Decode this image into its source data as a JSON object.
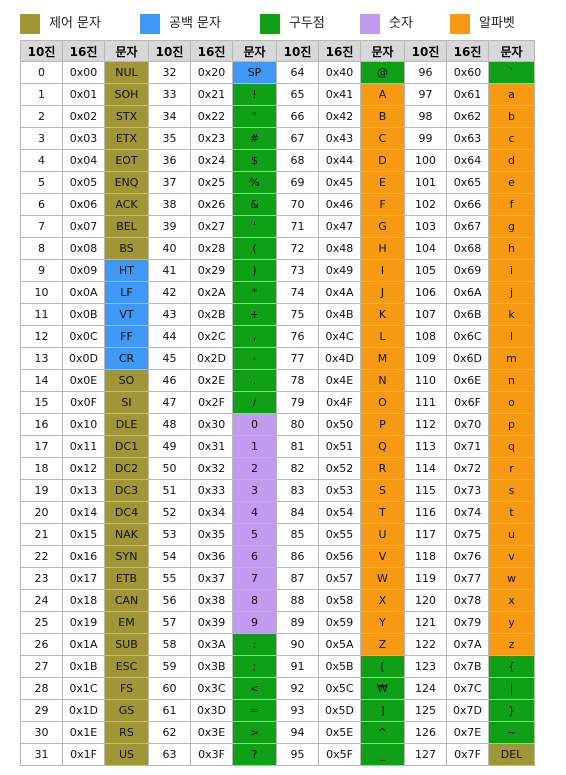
{
  "colors": {
    "control": "#a09638",
    "space": "#3e98f4",
    "punct": "#10a018",
    "digit": "#c29af0",
    "alpha": "#f69a14"
  },
  "legend": [
    {
      "key": "control",
      "label": "제어 문자"
    },
    {
      "key": "space",
      "label": "공백 문자"
    },
    {
      "key": "punct",
      "label": "구두점"
    },
    {
      "key": "digit",
      "label": "숫자"
    },
    {
      "key": "alpha",
      "label": "알파벳"
    }
  ],
  "headers": [
    "10진",
    "16진",
    "문자"
  ],
  "rows": [
    [
      [
        "0",
        "0x00",
        "NUL",
        "control"
      ],
      [
        "32",
        "0x20",
        "SP",
        "space"
      ],
      [
        "64",
        "0x40",
        "@",
        "punct"
      ],
      [
        "96",
        "0x60",
        "`",
        "punct"
      ]
    ],
    [
      [
        "1",
        "0x01",
        "SOH",
        "control"
      ],
      [
        "33",
        "0x21",
        "!",
        "punct"
      ],
      [
        "65",
        "0x41",
        "A",
        "alpha"
      ],
      [
        "97",
        "0x61",
        "a",
        "alpha"
      ]
    ],
    [
      [
        "2",
        "0x02",
        "STX",
        "control"
      ],
      [
        "34",
        "0x22",
        "\"",
        "punct"
      ],
      [
        "66",
        "0x42",
        "B",
        "alpha"
      ],
      [
        "98",
        "0x62",
        "b",
        "alpha"
      ]
    ],
    [
      [
        "3",
        "0x03",
        "ETX",
        "control"
      ],
      [
        "35",
        "0x23",
        "#",
        "punct"
      ],
      [
        "67",
        "0x43",
        "C",
        "alpha"
      ],
      [
        "99",
        "0x63",
        "c",
        "alpha"
      ]
    ],
    [
      [
        "4",
        "0x04",
        "EOT",
        "control"
      ],
      [
        "36",
        "0x24",
        "$",
        "punct"
      ],
      [
        "68",
        "0x44",
        "D",
        "alpha"
      ],
      [
        "100",
        "0x64",
        "d",
        "alpha"
      ]
    ],
    [
      [
        "5",
        "0x05",
        "ENQ",
        "control"
      ],
      [
        "37",
        "0x25",
        "%",
        "punct"
      ],
      [
        "69",
        "0x45",
        "E",
        "alpha"
      ],
      [
        "101",
        "0x65",
        "e",
        "alpha"
      ]
    ],
    [
      [
        "6",
        "0x06",
        "ACK",
        "control"
      ],
      [
        "38",
        "0x26",
        "&",
        "punct"
      ],
      [
        "70",
        "0x46",
        "F",
        "alpha"
      ],
      [
        "102",
        "0x66",
        "f",
        "alpha"
      ]
    ],
    [
      [
        "7",
        "0x07",
        "BEL",
        "control"
      ],
      [
        "39",
        "0x27",
        "'",
        "punct"
      ],
      [
        "71",
        "0x47",
        "G",
        "alpha"
      ],
      [
        "103",
        "0x67",
        "g",
        "alpha"
      ]
    ],
    [
      [
        "8",
        "0x08",
        "BS",
        "control"
      ],
      [
        "40",
        "0x28",
        "(",
        "punct"
      ],
      [
        "72",
        "0x48",
        "H",
        "alpha"
      ],
      [
        "104",
        "0x68",
        "h",
        "alpha"
      ]
    ],
    [
      [
        "9",
        "0x09",
        "HT",
        "space"
      ],
      [
        "41",
        "0x29",
        ")",
        "punct"
      ],
      [
        "73",
        "0x49",
        "I",
        "alpha"
      ],
      [
        "105",
        "0x69",
        "i",
        "alpha"
      ]
    ],
    [
      [
        "10",
        "0x0A",
        "LF",
        "space"
      ],
      [
        "42",
        "0x2A",
        "*",
        "punct"
      ],
      [
        "74",
        "0x4A",
        "J",
        "alpha"
      ],
      [
        "106",
        "0x6A",
        "j",
        "alpha"
      ]
    ],
    [
      [
        "11",
        "0x0B",
        "VT",
        "space"
      ],
      [
        "43",
        "0x2B",
        "+",
        "punct"
      ],
      [
        "75",
        "0x4B",
        "K",
        "alpha"
      ],
      [
        "107",
        "0x6B",
        "k",
        "alpha"
      ]
    ],
    [
      [
        "12",
        "0x0C",
        "FF",
        "space"
      ],
      [
        "44",
        "0x2C",
        ",",
        "punct"
      ],
      [
        "76",
        "0x4C",
        "L",
        "alpha"
      ],
      [
        "108",
        "0x6C",
        "l",
        "alpha"
      ]
    ],
    [
      [
        "13",
        "0x0D",
        "CR",
        "space"
      ],
      [
        "45",
        "0x2D",
        "-",
        "punct"
      ],
      [
        "77",
        "0x4D",
        "M",
        "alpha"
      ],
      [
        "109",
        "0x6D",
        "m",
        "alpha"
      ]
    ],
    [
      [
        "14",
        "0x0E",
        "SO",
        "control"
      ],
      [
        "46",
        "0x2E",
        ".",
        "punct"
      ],
      [
        "78",
        "0x4E",
        "N",
        "alpha"
      ],
      [
        "110",
        "0x6E",
        "n",
        "alpha"
      ]
    ],
    [
      [
        "15",
        "0x0F",
        "SI",
        "control"
      ],
      [
        "47",
        "0x2F",
        "/",
        "punct"
      ],
      [
        "79",
        "0x4F",
        "O",
        "alpha"
      ],
      [
        "111",
        "0x6F",
        "o",
        "alpha"
      ]
    ],
    [
      [
        "16",
        "0x10",
        "DLE",
        "control"
      ],
      [
        "48",
        "0x30",
        "0",
        "digit"
      ],
      [
        "80",
        "0x50",
        "P",
        "alpha"
      ],
      [
        "112",
        "0x70",
        "p",
        "alpha"
      ]
    ],
    [
      [
        "17",
        "0x11",
        "DC1",
        "control"
      ],
      [
        "49",
        "0x31",
        "1",
        "digit"
      ],
      [
        "81",
        "0x51",
        "Q",
        "alpha"
      ],
      [
        "113",
        "0x71",
        "q",
        "alpha"
      ]
    ],
    [
      [
        "18",
        "0x12",
        "DC2",
        "control"
      ],
      [
        "50",
        "0x32",
        "2",
        "digit"
      ],
      [
        "82",
        "0x52",
        "R",
        "alpha"
      ],
      [
        "114",
        "0x72",
        "r",
        "alpha"
      ]
    ],
    [
      [
        "19",
        "0x13",
        "DC3",
        "control"
      ],
      [
        "51",
        "0x33",
        "3",
        "digit"
      ],
      [
        "83",
        "0x53",
        "S",
        "alpha"
      ],
      [
        "115",
        "0x73",
        "s",
        "alpha"
      ]
    ],
    [
      [
        "20",
        "0x14",
        "DC4",
        "control"
      ],
      [
        "52",
        "0x34",
        "4",
        "digit"
      ],
      [
        "84",
        "0x54",
        "T",
        "alpha"
      ],
      [
        "116",
        "0x74",
        "t",
        "alpha"
      ]
    ],
    [
      [
        "21",
        "0x15",
        "NAK",
        "control"
      ],
      [
        "53",
        "0x35",
        "5",
        "digit"
      ],
      [
        "85",
        "0x55",
        "U",
        "alpha"
      ],
      [
        "117",
        "0x75",
        "u",
        "alpha"
      ]
    ],
    [
      [
        "22",
        "0x16",
        "SYN",
        "control"
      ],
      [
        "54",
        "0x36",
        "6",
        "digit"
      ],
      [
        "86",
        "0x56",
        "V",
        "alpha"
      ],
      [
        "118",
        "0x76",
        "v",
        "alpha"
      ]
    ],
    [
      [
        "23",
        "0x17",
        "ETB",
        "control"
      ],
      [
        "55",
        "0x37",
        "7",
        "digit"
      ],
      [
        "87",
        "0x57",
        "W",
        "alpha"
      ],
      [
        "119",
        "0x77",
        "w",
        "alpha"
      ]
    ],
    [
      [
        "24",
        "0x18",
        "CAN",
        "control"
      ],
      [
        "56",
        "0x38",
        "8",
        "digit"
      ],
      [
        "88",
        "0x58",
        "X",
        "alpha"
      ],
      [
        "120",
        "0x78",
        "x",
        "alpha"
      ]
    ],
    [
      [
        "25",
        "0x19",
        "EM",
        "control"
      ],
      [
        "57",
        "0x39",
        "9",
        "digit"
      ],
      [
        "89",
        "0x59",
        "Y",
        "alpha"
      ],
      [
        "121",
        "0x79",
        "y",
        "alpha"
      ]
    ],
    [
      [
        "26",
        "0x1A",
        "SUB",
        "control"
      ],
      [
        "58",
        "0x3A",
        ":",
        "punct"
      ],
      [
        "90",
        "0x5A",
        "Z",
        "alpha"
      ],
      [
        "122",
        "0x7A",
        "z",
        "alpha"
      ]
    ],
    [
      [
        "27",
        "0x1B",
        "ESC",
        "control"
      ],
      [
        "59",
        "0x3B",
        ";",
        "punct"
      ],
      [
        "91",
        "0x5B",
        "[",
        "punct"
      ],
      [
        "123",
        "0x7B",
        "{",
        "punct"
      ]
    ],
    [
      [
        "28",
        "0x1C",
        "FS",
        "control"
      ],
      [
        "60",
        "0x3C",
        "<",
        "punct"
      ],
      [
        "92",
        "0x5C",
        "₩",
        "punct"
      ],
      [
        "124",
        "0x7C",
        "|",
        "punct"
      ]
    ],
    [
      [
        "29",
        "0x1D",
        "GS",
        "control"
      ],
      [
        "61",
        "0x3D",
        "=",
        "punct"
      ],
      [
        "93",
        "0x5D",
        "]",
        "punct"
      ],
      [
        "125",
        "0x7D",
        "}",
        "punct"
      ]
    ],
    [
      [
        "30",
        "0x1E",
        "RS",
        "control"
      ],
      [
        "62",
        "0x3E",
        ">",
        "punct"
      ],
      [
        "94",
        "0x5E",
        "^",
        "punct"
      ],
      [
        "126",
        "0x7E",
        "~",
        "punct"
      ]
    ],
    [
      [
        "31",
        "0x1F",
        "US",
        "control"
      ],
      [
        "63",
        "0x3F",
        "?",
        "punct"
      ],
      [
        "95",
        "0x5F",
        "_",
        "punct"
      ],
      [
        "127",
        "0x7F",
        "DEL",
        "control"
      ]
    ]
  ]
}
